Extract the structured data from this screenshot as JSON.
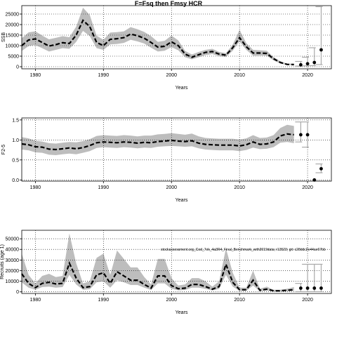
{
  "title": "F=Fsq then Fmsy HCR",
  "note": "stockassessment.org_Cod_7ek_4a3R4_Final_Benchmark_with2019data; r13523; git: c28ddc2e44ae67bb",
  "chart_data": [
    {
      "type": "line",
      "xlabel": "Years",
      "ylabel": "SSB",
      "xlim": [
        1978,
        2023.5
      ],
      "ylim": [
        -1000,
        29000
      ],
      "x_ticks": [
        1980,
        1990,
        2000,
        2010,
        2020
      ],
      "y_ticks": [
        0,
        5000,
        10000,
        15000,
        20000,
        25000
      ],
      "y_tick_labels": [
        "0",
        "5000",
        "10000",
        "15000",
        "20000",
        "25000"
      ],
      "x": [
        1978,
        1979,
        1980,
        1981,
        1982,
        1983,
        1984,
        1985,
        1986,
        1987,
        1988,
        1989,
        1990,
        1991,
        1992,
        1993,
        1994,
        1995,
        1996,
        1997,
        1998,
        1999,
        2000,
        2001,
        2002,
        2003,
        2004,
        2005,
        2006,
        2007,
        2008,
        2009,
        2010,
        2011,
        2012,
        2013,
        2014,
        2015,
        2016,
        2017,
        2018
      ],
      "estimate": [
        10000,
        12700,
        13200,
        11500,
        9800,
        10500,
        11400,
        11000,
        15000,
        22000,
        19000,
        11500,
        10000,
        13000,
        13300,
        13800,
        15500,
        14700,
        13500,
        11500,
        9300,
        9700,
        11800,
        10000,
        6000,
        4500,
        5700,
        6800,
        7200,
        6000,
        5500,
        9000,
        13800,
        9500,
        6500,
        6500,
        6300,
        3800,
        2000,
        1100,
        1000
      ],
      "lower": [
        7500,
        9800,
        10300,
        8800,
        7200,
        8000,
        8800,
        8500,
        11800,
        17000,
        14500,
        8800,
        8000,
        10600,
        10800,
        11300,
        12800,
        12000,
        11000,
        9000,
        7200,
        7600,
        9300,
        7800,
        4500,
        3500,
        4500,
        5500,
        6000,
        5000,
        4600,
        7600,
        12000,
        8000,
        5200,
        5300,
        5200,
        3000,
        1500,
        800,
        700
      ],
      "upper": [
        13500,
        16300,
        16800,
        14800,
        13000,
        13700,
        14500,
        14000,
        19000,
        28000,
        24500,
        14700,
        12800,
        16200,
        16400,
        16800,
        18800,
        17800,
        16500,
        14500,
        11800,
        12300,
        14800,
        12500,
        7500,
        5800,
        7000,
        8000,
        8500,
        7000,
        6400,
        10500,
        17500,
        11200,
        8000,
        7800,
        7600,
        4600,
        2600,
        1400,
        1500
      ],
      "projection": {
        "years": [
          2019,
          2020,
          2021,
          2022
        ],
        "median": [
          900,
          1400,
          2000,
          8000
        ],
        "lower": [
          300,
          400,
          500,
          1000
        ],
        "upper": [
          2500,
          4500,
          9000,
          28500
        ]
      }
    },
    {
      "type": "line",
      "xlabel": "Years",
      "ylabel": "F2-5",
      "xlim": [
        1978,
        2023.5
      ],
      "ylim": [
        -0.03,
        1.55
      ],
      "x_ticks": [
        1980,
        1990,
        2000,
        2010,
        2020
      ],
      "y_ticks": [
        0.0,
        0.5,
        1.0,
        1.5
      ],
      "y_tick_labels": [
        "0.0",
        "0.5",
        "1.0",
        "1.5"
      ],
      "x": [
        1978,
        1979,
        1980,
        1981,
        1982,
        1983,
        1984,
        1985,
        1986,
        1987,
        1988,
        1989,
        1990,
        1991,
        1992,
        1993,
        1994,
        1995,
        1996,
        1997,
        1998,
        1999,
        2000,
        2001,
        2002,
        2003,
        2004,
        2005,
        2006,
        2007,
        2008,
        2009,
        2010,
        2011,
        2012,
        2013,
        2014,
        2015,
        2016,
        2017,
        2018
      ],
      "estimate": [
        0.9,
        0.88,
        0.83,
        0.82,
        0.77,
        0.76,
        0.78,
        0.8,
        0.78,
        0.81,
        0.86,
        0.93,
        0.95,
        0.94,
        0.93,
        0.95,
        0.94,
        0.92,
        0.94,
        0.93,
        0.96,
        0.97,
        0.99,
        0.97,
        0.96,
        0.98,
        0.92,
        0.89,
        0.88,
        0.87,
        0.87,
        0.87,
        0.85,
        0.88,
        0.95,
        0.89,
        0.9,
        0.95,
        1.1,
        1.15,
        1.13
      ],
      "lower": [
        0.76,
        0.74,
        0.69,
        0.68,
        0.63,
        0.62,
        0.64,
        0.66,
        0.64,
        0.68,
        0.72,
        0.8,
        0.82,
        0.81,
        0.8,
        0.82,
        0.81,
        0.79,
        0.81,
        0.8,
        0.83,
        0.84,
        0.85,
        0.84,
        0.83,
        0.84,
        0.79,
        0.76,
        0.75,
        0.74,
        0.74,
        0.74,
        0.72,
        0.75,
        0.81,
        0.77,
        0.78,
        0.82,
        0.93,
        0.95,
        0.92
      ],
      "upper": [
        1.07,
        1.04,
        0.98,
        0.96,
        0.92,
        0.91,
        0.93,
        0.95,
        0.94,
        0.97,
        1.02,
        1.1,
        1.12,
        1.11,
        1.1,
        1.12,
        1.11,
        1.09,
        1.11,
        1.11,
        1.14,
        1.15,
        1.17,
        1.15,
        1.13,
        1.16,
        1.09,
        1.05,
        1.04,
        1.03,
        1.03,
        1.03,
        1.01,
        1.04,
        1.12,
        1.05,
        1.06,
        1.12,
        1.3,
        1.38,
        1.35
      ],
      "projection": {
        "years": [
          2019,
          2020,
          2021,
          2022
        ],
        "median": [
          1.13,
          1.13,
          0.0,
          0.28
        ],
        "lower": [
          0.95,
          0.82,
          0.0,
          0.18
        ],
        "upper": [
          1.45,
          1.45,
          0.0,
          0.4
        ]
      }
    },
    {
      "type": "line",
      "xlabel": "Years",
      "ylabel": "Recruits (age 1)",
      "xlim": [
        1978,
        2023.5
      ],
      "ylim": [
        -1500,
        58000
      ],
      "x_ticks": [
        1980,
        1990,
        2000,
        2010,
        2020
      ],
      "y_ticks": [
        0,
        10000,
        20000,
        30000,
        40000,
        50000
      ],
      "y_tick_labels": [
        "0",
        "10000",
        "20000",
        "30000",
        "40000",
        "50000"
      ],
      "x": [
        1978,
        1979,
        1980,
        1981,
        1982,
        1983,
        1984,
        1985,
        1986,
        1987,
        1988,
        1989,
        1990,
        1991,
        1992,
        1993,
        1994,
        1995,
        1996,
        1997,
        1998,
        1999,
        2000,
        2001,
        2002,
        2003,
        2004,
        2005,
        2006,
        2007,
        2008,
        2009,
        2010,
        2011,
        2012,
        2013,
        2014,
        2015,
        2016,
        2017,
        2018
      ],
      "estimate": [
        17000,
        8000,
        4000,
        8000,
        9000,
        7500,
        8000,
        27000,
        13000,
        4000,
        5000,
        16000,
        18000,
        8000,
        19000,
        15000,
        11000,
        11000,
        7000,
        3500,
        15000,
        15000,
        6000,
        3000,
        3500,
        7000,
        7000,
        5000,
        2500,
        5000,
        26000,
        9000,
        2000,
        2000,
        11000,
        1500,
        2500,
        1000,
        1000,
        1500,
        2000
      ],
      "lower": [
        9000,
        4000,
        2000,
        4500,
        5000,
        4000,
        4500,
        16000,
        7000,
        2000,
        2500,
        9000,
        10000,
        4000,
        11000,
        9000,
        6500,
        6500,
        4000,
        1800,
        8000,
        8000,
        3000,
        1500,
        1800,
        4000,
        4000,
        2800,
        1400,
        2800,
        16000,
        5000,
        1000,
        1000,
        6000,
        700,
        1200,
        500,
        500,
        700,
        900
      ],
      "upper": [
        36000,
        16000,
        8000,
        15000,
        17000,
        14000,
        15000,
        55000,
        27000,
        8000,
        10000,
        32000,
        36000,
        16000,
        39000,
        31000,
        23000,
        23000,
        14000,
        7000,
        31000,
        31000,
        13000,
        6000,
        7000,
        13000,
        13000,
        10000,
        5000,
        10000,
        41000,
        18000,
        4000,
        4000,
        20000,
        3000,
        5000,
        2000,
        2000,
        3000,
        4500
      ],
      "projection": {
        "years": [
          2019,
          2020,
          2021,
          2022
        ],
        "median": [
          3500,
          3500,
          3500,
          3500
        ],
        "lower": [
          200,
          200,
          200,
          200
        ],
        "upper": [
          8000,
          26000,
          26000,
          26000
        ]
      }
    }
  ]
}
